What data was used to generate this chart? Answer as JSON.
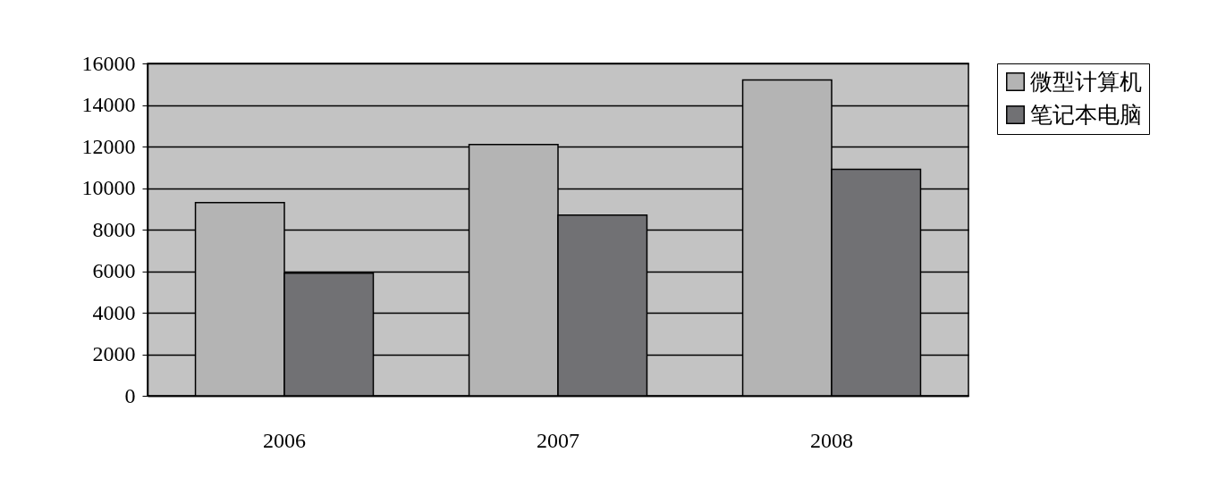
{
  "chart_data": {
    "type": "bar",
    "categories": [
      "2006",
      "2007",
      "2008"
    ],
    "series": [
      {
        "name": "微型计算机",
        "color": "#b4b4b4",
        "values": [
          9300,
          12100,
          15200
        ]
      },
      {
        "name": "笔记本电脑",
        "color": "#717174",
        "values": [
          5900,
          8700,
          10900
        ]
      }
    ],
    "ylim": [
      0,
      16000
    ],
    "yticks": [
      0,
      2000,
      4000,
      6000,
      8000,
      10000,
      12000,
      14000,
      16000
    ],
    "grid": "y",
    "legend": "right"
  }
}
